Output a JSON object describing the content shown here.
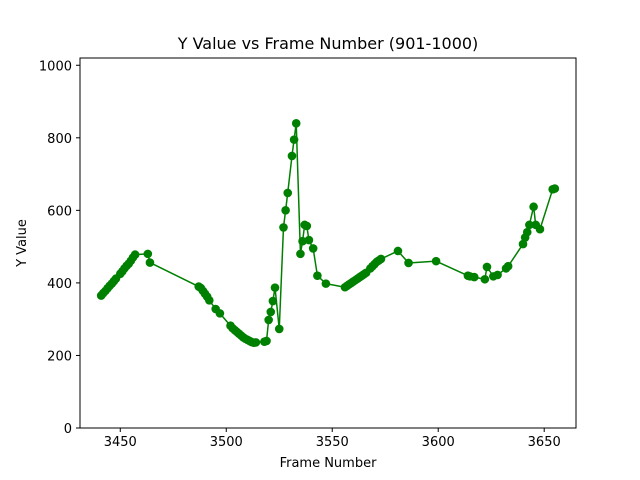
{
  "chart_data": {
    "type": "line",
    "title": "Y Value vs Frame Number (901-1000)",
    "xlabel": "Frame Number",
    "ylabel": "Y Value",
    "xlim": [
      3431,
      3665
    ],
    "ylim": [
      0,
      1020
    ],
    "xticks": [
      3450,
      3500,
      3550,
      3600,
      3650
    ],
    "yticks": [
      0,
      200,
      400,
      600,
      800,
      1000
    ],
    "grid": false,
    "legend": "none",
    "series": [
      {
        "color": "#008000",
        "marker": "circle",
        "points": [
          [
            3441,
            365
          ],
          [
            3442,
            372
          ],
          [
            3443,
            378
          ],
          [
            3444,
            385
          ],
          [
            3445,
            392
          ],
          [
            3446,
            398
          ],
          [
            3447,
            405
          ],
          [
            3448,
            412
          ],
          [
            3450,
            425
          ],
          [
            3451,
            432
          ],
          [
            3452,
            440
          ],
          [
            3453,
            447
          ],
          [
            3454,
            453
          ],
          [
            3455,
            461
          ],
          [
            3456,
            470
          ],
          [
            3457,
            478
          ],
          [
            3463,
            480
          ],
          [
            3464,
            456
          ],
          [
            3487,
            390
          ],
          [
            3488,
            386
          ],
          [
            3489,
            378
          ],
          [
            3490,
            370
          ],
          [
            3491,
            362
          ],
          [
            3492,
            352
          ],
          [
            3495,
            328
          ],
          [
            3497,
            316
          ],
          [
            3502,
            282
          ],
          [
            3503,
            275
          ],
          [
            3504,
            270
          ],
          [
            3505,
            265
          ],
          [
            3506,
            260
          ],
          [
            3507,
            255
          ],
          [
            3508,
            250
          ],
          [
            3509,
            246
          ],
          [
            3510,
            243
          ],
          [
            3511,
            240
          ],
          [
            3512,
            237
          ],
          [
            3513,
            235
          ],
          [
            3514,
            236
          ],
          [
            3518,
            238
          ],
          [
            3519,
            240
          ],
          [
            3520,
            298
          ],
          [
            3521,
            320
          ],
          [
            3522,
            350
          ],
          [
            3523,
            387
          ],
          [
            3525,
            273
          ],
          [
            3527,
            553
          ],
          [
            3528,
            600
          ],
          [
            3529,
            648
          ],
          [
            3531,
            750
          ],
          [
            3532,
            795
          ],
          [
            3533,
            840
          ],
          [
            3535,
            480
          ],
          [
            3536,
            515
          ],
          [
            3537,
            560
          ],
          [
            3538,
            557
          ],
          [
            3539,
            518
          ],
          [
            3541,
            495
          ],
          [
            3543,
            420
          ],
          [
            3547,
            398
          ],
          [
            3556,
            388
          ],
          [
            3557,
            392
          ],
          [
            3558,
            396
          ],
          [
            3559,
            400
          ],
          [
            3560,
            404
          ],
          [
            3561,
            408
          ],
          [
            3562,
            412
          ],
          [
            3563,
            416
          ],
          [
            3564,
            420
          ],
          [
            3565,
            424
          ],
          [
            3566,
            428
          ],
          [
            3568,
            440
          ],
          [
            3569,
            446
          ],
          [
            3570,
            452
          ],
          [
            3571,
            458
          ],
          [
            3572,
            462
          ],
          [
            3573,
            466
          ],
          [
            3581,
            488
          ],
          [
            3586,
            455
          ],
          [
            3599,
            460
          ],
          [
            3614,
            420
          ],
          [
            3615,
            418
          ],
          [
            3617,
            416
          ],
          [
            3622,
            410
          ],
          [
            3623,
            444
          ],
          [
            3626,
            418
          ],
          [
            3628,
            422
          ],
          [
            3632,
            440
          ],
          [
            3633,
            446
          ],
          [
            3640,
            507
          ],
          [
            3641,
            525
          ],
          [
            3642,
            540
          ],
          [
            3643,
            560
          ],
          [
            3645,
            610
          ],
          [
            3646,
            560
          ],
          [
            3648,
            548
          ],
          [
            3654,
            658
          ],
          [
            3655,
            660
          ]
        ]
      }
    ]
  }
}
